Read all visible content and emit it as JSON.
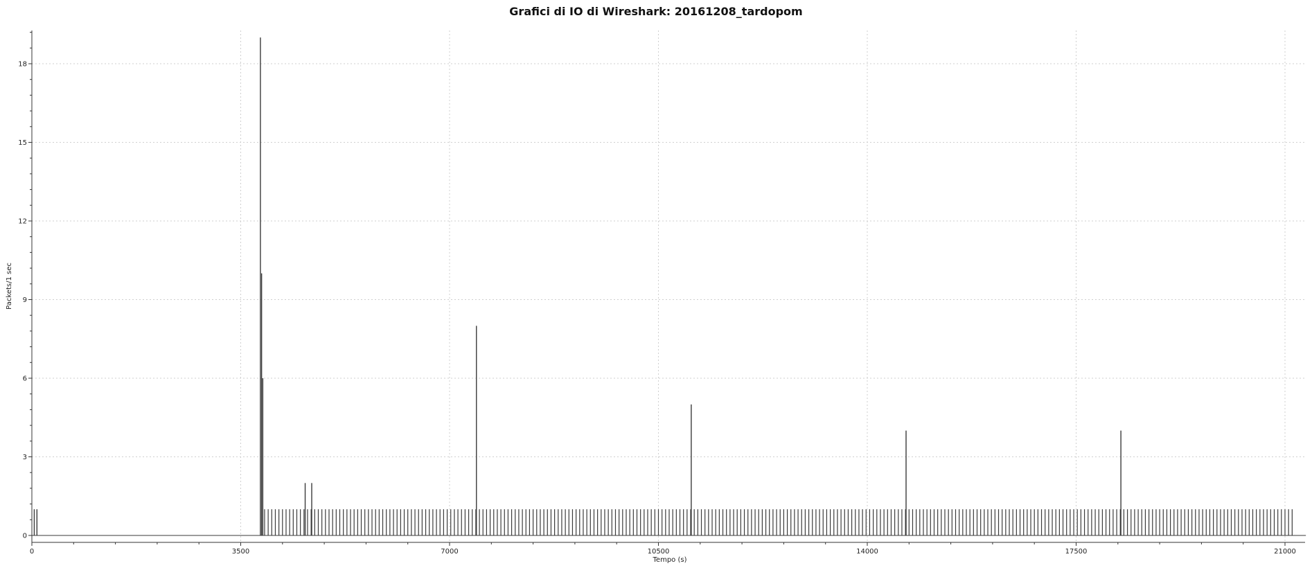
{
  "chart_data": {
    "type": "bar",
    "title": "Grafici di IO di Wireshark: 20161208_tardopom",
    "xlabel": "Tempo (s)",
    "ylabel": "Packets/1 sec",
    "xlim": [
      0,
      21350
    ],
    "ylim": [
      -0.25,
      19.25
    ],
    "x_ticks": [
      0,
      3500,
      7000,
      10500,
      14000,
      17500,
      21000
    ],
    "y_ticks": [
      0,
      3,
      6,
      9,
      12,
      15,
      18
    ],
    "grid": true,
    "legend": "none",
    "baseline_x_range": [
      0,
      21350
    ],
    "spikes": [
      {
        "x": 40,
        "y": 1
      },
      {
        "x": 85,
        "y": 1
      },
      {
        "x": 3830,
        "y": 19
      },
      {
        "x": 3850,
        "y": 10
      },
      {
        "x": 3870,
        "y": 6
      },
      {
        "x": 4580,
        "y": 2
      },
      {
        "x": 4690,
        "y": 2
      },
      {
        "x": 7450,
        "y": 8
      },
      {
        "x": 11050,
        "y": 5
      },
      {
        "x": 14650,
        "y": 4
      },
      {
        "x": 18250,
        "y": 4
      }
    ],
    "periodic_series": {
      "start": 3900,
      "end": 21150,
      "step": 60,
      "y": 1
    },
    "colors": {
      "bars": "#3a3a3a",
      "grid": "#cfcfcf",
      "axis": "#333333"
    }
  }
}
